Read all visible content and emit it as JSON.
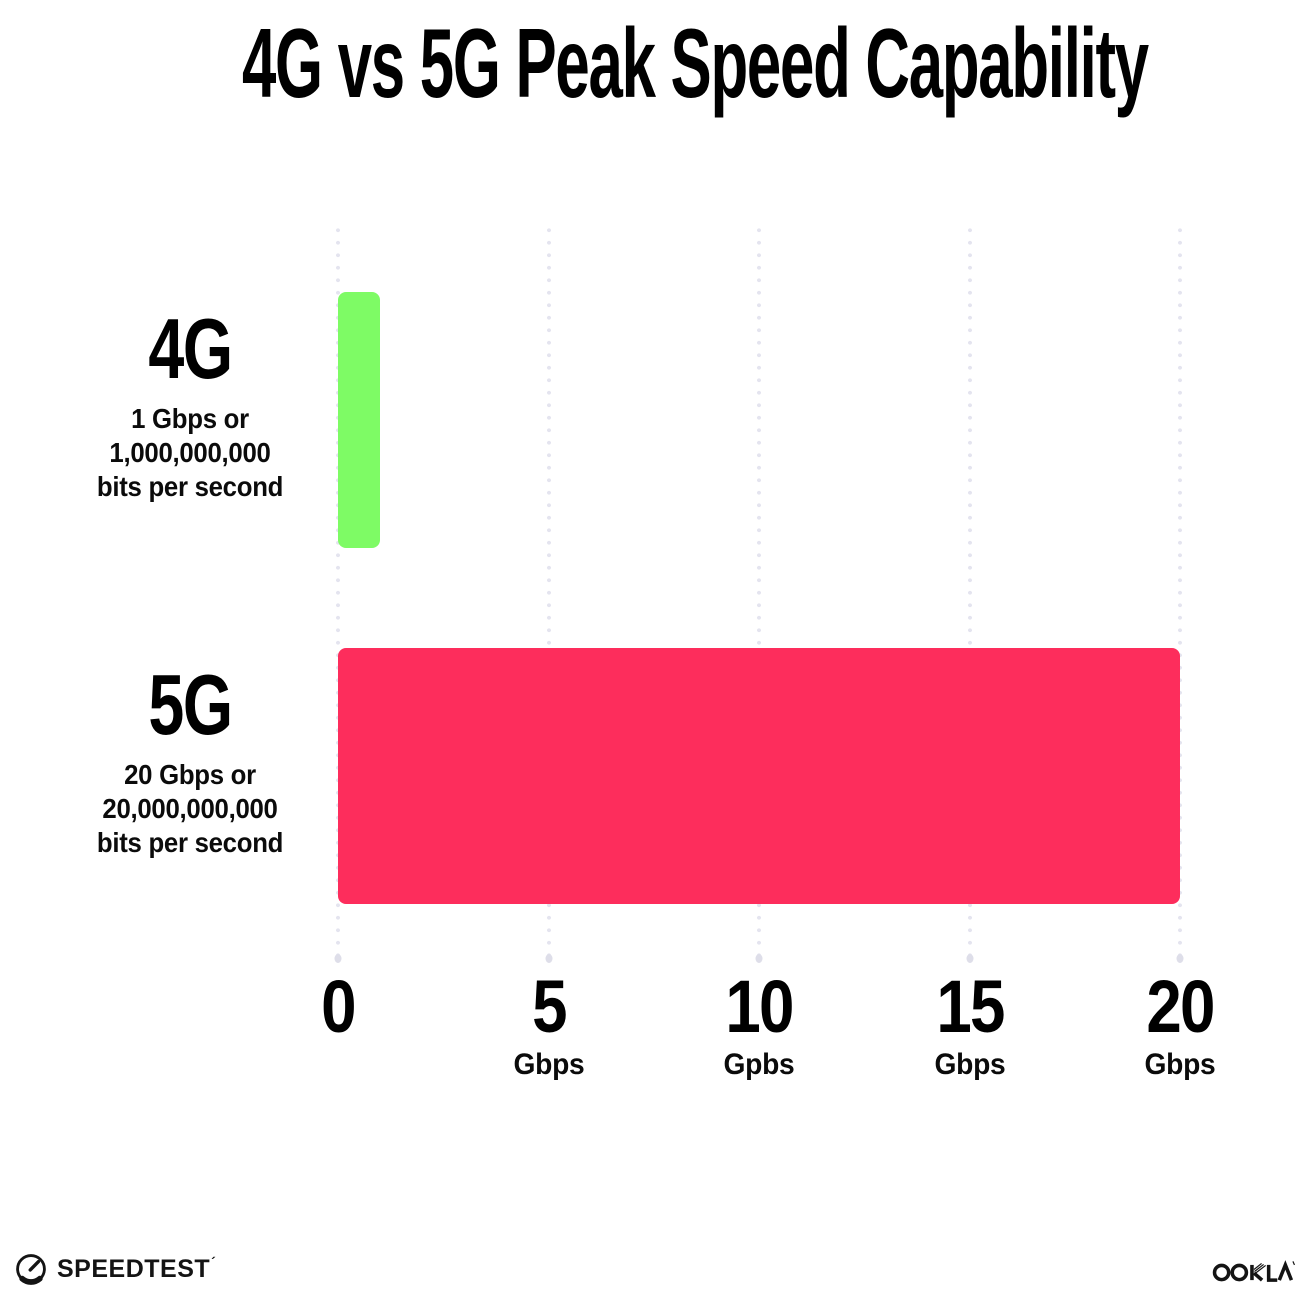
{
  "chart_data": {
    "type": "bar",
    "orientation": "horizontal",
    "title": "4G vs 5G Peak Speed Capability",
    "categories": [
      "4G",
      "5G"
    ],
    "values": [
      1,
      20
    ],
    "unit": "Gbps",
    "series_colors": [
      "#7efb65",
      "#fd2d5c"
    ],
    "category_sublabels": [
      [
        "1 Gbps or",
        "1,000,000,000",
        "bits per second"
      ],
      [
        "20 Gbps or",
        "20,000,000,000",
        "bits per second"
      ]
    ],
    "xlim": [
      0,
      20
    ],
    "x_ticks": [
      {
        "label": "0",
        "unit": ""
      },
      {
        "label": "5",
        "unit": "Gbps"
      },
      {
        "label": "10",
        "unit": "Gpbs"
      },
      {
        "label": "15",
        "unit": "Gbps"
      },
      {
        "label": "20",
        "unit": "Gbps"
      }
    ],
    "grid": "vertical dotted",
    "legend": "none"
  },
  "footer": {
    "speedtest_label": "SPEEDTEST",
    "speedtest_mark": "´",
    "speedtest_icon": "gauge-icon",
    "ookla_label": "OOKLA"
  },
  "colors": {
    "background": "#ffffff",
    "text": "#0b0b0b",
    "gridline_dot": "#e4e4ef",
    "bar_4g": "#7efb65",
    "bar_5g": "#fd2d5c"
  }
}
